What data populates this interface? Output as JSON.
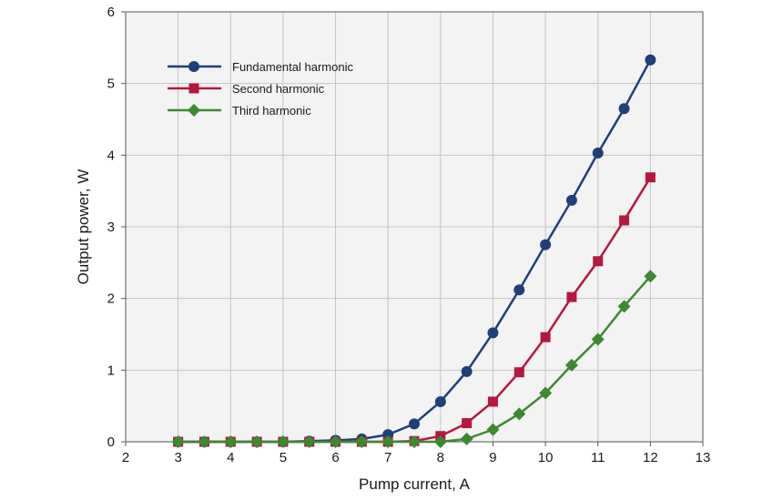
{
  "chart_data": {
    "type": "line",
    "xlabel": "Pump current, A",
    "ylabel": "Output power, W",
    "xlim": [
      2,
      13
    ],
    "ylim": [
      0,
      6
    ],
    "xticks": [
      "2",
      "3",
      "4",
      "5",
      "6",
      "7",
      "8",
      "9",
      "10",
      "11",
      "12",
      "13"
    ],
    "yticks": [
      "0",
      "1",
      "2",
      "3",
      "4",
      "5",
      "6"
    ],
    "grid": true,
    "legend_position": "top-left",
    "x": [
      3,
      3.5,
      4,
      4.5,
      5,
      5.5,
      6,
      6.5,
      7,
      7.5,
      8,
      8.5,
      9,
      9.5,
      10,
      10.5,
      11,
      11.5,
      12
    ],
    "series": [
      {
        "name": "Fundamental harmonic",
        "color": "#1f3f7a",
        "marker": "circle",
        "values": [
          0,
          0,
          0,
          0,
          0,
          0.01,
          0.02,
          0.04,
          0.1,
          0.25,
          0.56,
          0.98,
          1.52,
          2.12,
          2.75,
          3.37,
          4.03,
          4.65,
          5.33
        ]
      },
      {
        "name": "Second harmonic",
        "color": "#b5173f",
        "marker": "square",
        "values": [
          0,
          0,
          0,
          0,
          0,
          0,
          0,
          0,
          0,
          0.01,
          0.08,
          0.26,
          0.56,
          0.97,
          1.46,
          2.02,
          2.52,
          3.09,
          3.69
        ]
      },
      {
        "name": "Third harmonic",
        "color": "#3c8a2e",
        "marker": "diamond",
        "values": [
          0,
          0,
          0,
          0,
          0,
          0,
          0,
          0,
          0,
          0,
          0,
          0.04,
          0.17,
          0.39,
          0.68,
          1.07,
          1.43,
          1.89,
          2.31
        ]
      }
    ]
  }
}
